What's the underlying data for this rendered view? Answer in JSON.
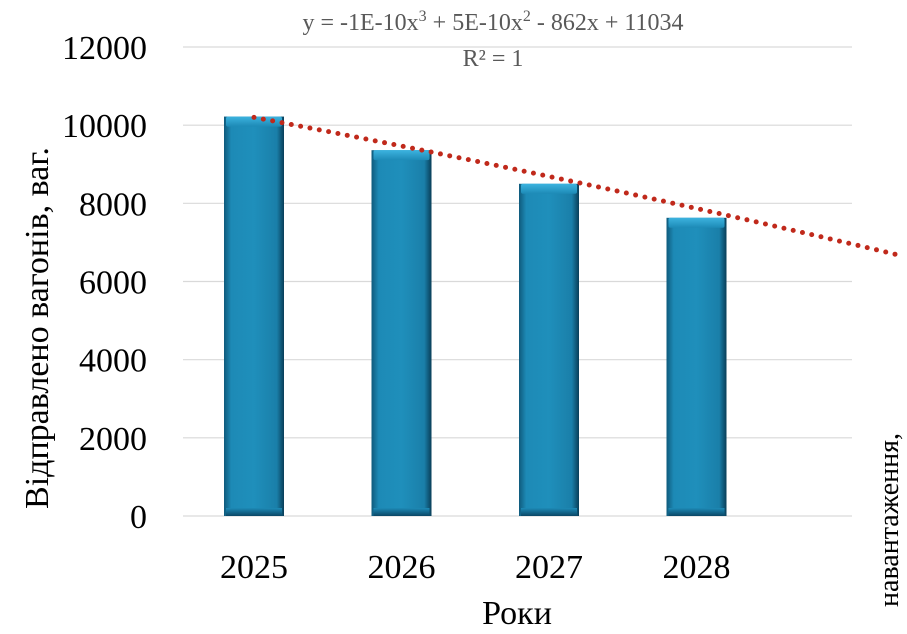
{
  "chart_data": {
    "type": "bar",
    "categories": [
      "2025",
      "2026",
      "2027",
      "2028"
    ],
    "values": [
      10220,
      9360,
      8500,
      7630
    ],
    "ylabel": "Відправлено вагонів, ваг.",
    "xlabel": "Роки",
    "ylim": [
      0,
      12000
    ],
    "yticks": [
      "0",
      "2000",
      "4000",
      "6000",
      "8000",
      "10000",
      "12000"
    ],
    "grid": true,
    "trendline": {
      "type": "polynomial",
      "style": "dotted",
      "color": "#c0291b",
      "equation": {
        "base": "y = -1E-10x",
        "p1": "3",
        "mid": " + 5E-10x",
        "p2": "2",
        "tail": " - 862x + 11034"
      },
      "r2": "R² = 1",
      "start_value": 10200,
      "end_category_offset": 4.4,
      "end_value": 6650
    },
    "bar_color": "#1b82ad",
    "side_label": "навантаження,"
  }
}
